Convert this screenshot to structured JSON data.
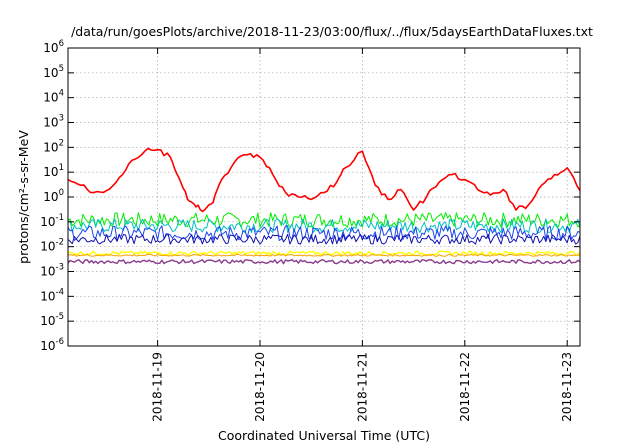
{
  "chart_data": {
    "type": "line",
    "title": "/data/run/goesPlots/archive/2018-11-23/03:00/flux/../flux/5daysEarthDataFluxes.txt",
    "xlabel": "Coordinated Universal Time (UTC)",
    "ylabel": "protons/cm²-s-sr-MeV",
    "yscale": "log",
    "ylim": [
      1e-06,
      1000000.0
    ],
    "xlim": [
      "2018-11-18T03:00",
      "2018-11-23T03:00"
    ],
    "y_ticks": [
      {
        "value": 1e-06,
        "base": "10",
        "exp": "-6"
      },
      {
        "value": 1e-05,
        "base": "10",
        "exp": "-5"
      },
      {
        "value": 0.0001,
        "base": "10",
        "exp": "-4"
      },
      {
        "value": 0.001,
        "base": "10",
        "exp": "-3"
      },
      {
        "value": 0.01,
        "base": "10",
        "exp": "-2"
      },
      {
        "value": 0.1,
        "base": "10",
        "exp": "-1"
      },
      {
        "value": 1,
        "base": "10",
        "exp": "0"
      },
      {
        "value": 10,
        "base": "10",
        "exp": "1"
      },
      {
        "value": 100,
        "base": "10",
        "exp": "2"
      },
      {
        "value": 1000,
        "base": "10",
        "exp": "3"
      },
      {
        "value": 10000,
        "base": "10",
        "exp": "4"
      },
      {
        "value": 100000,
        "base": "10",
        "exp": "5"
      },
      {
        "value": 1000000,
        "base": "10",
        "exp": "6"
      }
    ],
    "x_ticks": [
      "2018-11-19",
      "2018-11-20",
      "2018-11-21",
      "2018-11-22",
      "2018-11-23"
    ],
    "x_tick_values": [
      "2018-11-19T00:00",
      "2018-11-20T00:00",
      "2018-11-21T00:00",
      "2018-11-22T00:00",
      "2018-11-23T00:00"
    ],
    "grid": true,
    "series": [
      {
        "color": "#ff0000",
        "width": 1.6,
        "x": [
          "2018-11-18T03:00",
          "2018-11-18T06:00",
          "2018-11-18T09:00",
          "2018-11-18T12:00",
          "2018-11-18T15:00",
          "2018-11-18T18:00",
          "2018-11-18T21:00",
          "2018-11-19T00:00",
          "2018-11-19T03:00",
          "2018-11-19T05:00",
          "2018-11-19T07:00",
          "2018-11-19T09:00",
          "2018-11-19T11:00",
          "2018-11-19T13:00",
          "2018-11-19T15:00",
          "2018-11-19T18:00",
          "2018-11-19T21:00",
          "2018-11-20T00:00",
          "2018-11-20T03:00",
          "2018-11-20T06:00",
          "2018-11-20T09:00",
          "2018-11-20T12:00",
          "2018-11-20T15:00",
          "2018-11-20T18:00",
          "2018-11-20T20:00",
          "2018-11-21T00:00",
          "2018-11-21T03:00",
          "2018-11-21T06:00",
          "2018-11-21T09:00",
          "2018-11-21T12:00",
          "2018-11-21T15:00",
          "2018-11-21T18:00",
          "2018-11-21T21:00",
          "2018-11-22T00:00",
          "2018-11-22T03:00",
          "2018-11-22T06:00",
          "2018-11-22T09:00",
          "2018-11-22T12:00",
          "2018-11-22T15:00",
          "2018-11-22T18:00",
          "2018-11-22T21:00",
          "2018-11-23T00:00",
          "2018-11-23T03:00"
        ],
        "y": [
          5,
          3,
          1.5,
          1.8,
          6,
          30,
          70,
          80,
          40,
          6,
          0.8,
          0.4,
          0.3,
          0.6,
          5,
          25,
          50,
          40,
          8,
          1.5,
          1,
          0.8,
          1.5,
          4,
          15,
          70,
          3,
          0.8,
          2,
          0.3,
          1,
          4,
          8,
          5,
          2,
          1.2,
          2,
          0.3,
          0.5,
          3,
          8,
          15,
          1.8
        ]
      },
      {
        "color": "#00ee00",
        "width": 1,
        "level": 0.12,
        "spread": 0.3
      },
      {
        "color": "#00c0c0",
        "width": 1,
        "level": 0.07,
        "spread": 0.28
      },
      {
        "color": "#1c44f0",
        "width": 1,
        "level": 0.035,
        "spread": 0.3
      },
      {
        "color": "#1010b0",
        "width": 1,
        "level": 0.02,
        "spread": 0.2
      },
      {
        "color": "#ffff00",
        "width": 1.4,
        "level": 0.0055,
        "spread": 0.08
      },
      {
        "color": "#f7a000",
        "width": 1,
        "level": 0.0045,
        "spread": 0.04
      },
      {
        "color": "#8a3c8c",
        "width": 1.4,
        "level": 0.0025,
        "spread": 0.08
      }
    ]
  }
}
